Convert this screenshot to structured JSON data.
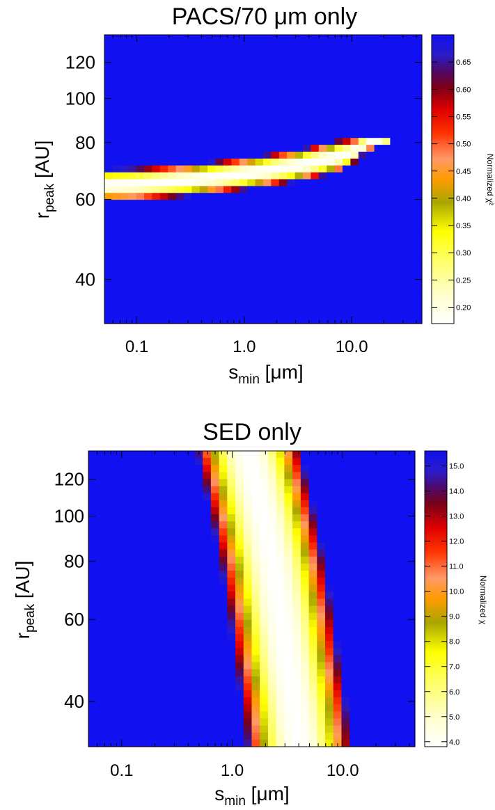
{
  "chart_data": [
    {
      "type": "heatmap",
      "title": "PACS/70 μm only",
      "xlabel_main": "s",
      "xlabel_sub": "min",
      "xlabel_unit": " [μm]",
      "ylabel_main": "r",
      "ylabel_sub": "peak",
      "ylabel_unit": " [AU]",
      "x_scale": "log",
      "y_scale": "log",
      "xlim": [
        0.05,
        45
      ],
      "ylim": [
        32,
        138
      ],
      "x_ticks": [
        0.1,
        1.0,
        10.0
      ],
      "x_tick_labels": [
        "0.1",
        "1.0",
        "10.0"
      ],
      "y_ticks": [
        40,
        60,
        80,
        100,
        120
      ],
      "y_tick_labels": [
        "40",
        "60",
        "80",
        "100",
        "120"
      ],
      "colorbar_label": "Normalized χ²",
      "colorbar_range": [
        0.17,
        0.7
      ],
      "colorbar_ticks": [
        0.2,
        0.25,
        0.3,
        0.35,
        0.4,
        0.45,
        0.5,
        0.55,
        0.6,
        0.65
      ],
      "colorbar_tick_labels": [
        "0.20",
        "0.25",
        "0.30",
        "0.35",
        "0.40",
        "0.45",
        "0.50",
        "0.55",
        "0.60",
        "0.65"
      ],
      "min_valley": {
        "x": [
          0.05,
          0.1,
          0.3,
          1.0,
          3.0,
          6.0,
          10.0,
          14.0
        ],
        "r": [
          64.5,
          64.8,
          66.0,
          68.2,
          71.0,
          73.5,
          76.0,
          80.0
        ],
        "half_width_dex": 0.028
      },
      "grid": "40x42 cells",
      "grid_lines": false
    },
    {
      "type": "heatmap",
      "title": "SED only",
      "xlabel_main": "s",
      "xlabel_sub": "min",
      "xlabel_unit": " [μm]",
      "ylabel_main": "r",
      "ylabel_sub": "peak",
      "ylabel_unit": " [AU]",
      "x_scale": "log",
      "y_scale": "log",
      "xlim": [
        0.05,
        45
      ],
      "ylim": [
        32,
        138
      ],
      "x_ticks": [
        0.1,
        1.0,
        10.0
      ],
      "x_tick_labels": [
        "0.1",
        "1.0",
        "10.0"
      ],
      "y_ticks": [
        40,
        60,
        80,
        100,
        120
      ],
      "y_tick_labels": [
        "40",
        "60",
        "80",
        "100",
        "120"
      ],
      "colorbar_label": "Normalized χ",
      "colorbar_range": [
        3.8,
        15.6
      ],
      "colorbar_ticks": [
        4.0,
        5.0,
        6.0,
        7.0,
        8.0,
        9.0,
        10.0,
        11.0,
        12.0,
        13.0,
        14.0,
        15.0
      ],
      "colorbar_tick_labels": [
        "4.0",
        "5.0",
        "6.0",
        "7.0",
        "8.0",
        "9.0",
        "10.0",
        "11.0",
        "12.0",
        "13.0",
        "14.0",
        "15.0"
      ],
      "min_valley": {
        "r": [
          32,
          40,
          50,
          60,
          80,
          100,
          120,
          138
        ],
        "x": [
          4.0,
          3.6,
          3.1,
          2.8,
          2.3,
          1.9,
          1.6,
          1.4
        ],
        "half_width_dex": 0.38
      },
      "grid": "40x42 cells",
      "grid_lines": false
    }
  ]
}
